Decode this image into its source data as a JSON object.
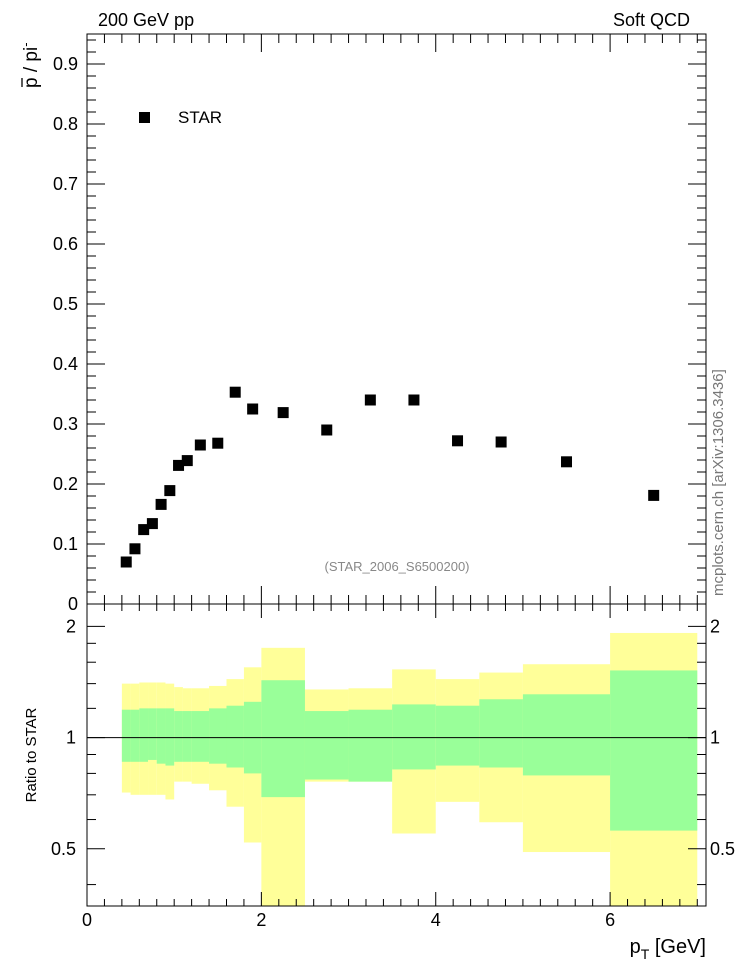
{
  "header": {
    "left": "200 GeV pp",
    "right": "Soft QCD"
  },
  "side_label": "mcplots.cern.ch [arXiv:1306.3436]",
  "reference": "(STAR_2006_S6500200)",
  "colors": {
    "marker": "#000000",
    "band_inner": "#99ff99",
    "band_outer": "#ffff99",
    "frame": "#000000",
    "reference_text": "#888888",
    "side_text": "#777777"
  },
  "chart_data": [
    {
      "type": "scatter",
      "panel": "main",
      "ylabel_parts": {
        "p": "p",
        "rest": " / pi",
        "sup": "-"
      },
      "ylabel": "p̄ / pi-",
      "xlim": [
        0,
        7.1
      ],
      "ylim": [
        0,
        0.95
      ],
      "yticks": [
        0.1,
        0.2,
        0.3,
        0.4,
        0.5,
        0.6,
        0.7,
        0.8,
        0.9
      ],
      "ytick_labels": [
        "0.1",
        "0.2",
        "0.3",
        "0.4",
        "0.5",
        "0.6",
        "0.7",
        "0.8",
        "0.9"
      ],
      "cut_label": "0",
      "legend": {
        "label": "STAR",
        "placement": "top-left"
      },
      "series": [
        {
          "name": "STAR",
          "x": [
            0.45,
            0.55,
            0.65,
            0.75,
            0.85,
            0.95,
            1.05,
            1.15,
            1.3,
            1.5,
            1.7,
            1.9,
            2.25,
            2.75,
            3.25,
            3.75,
            4.25,
            4.75,
            5.5,
            6.5
          ],
          "y": [
            0.07,
            0.092,
            0.124,
            0.134,
            0.166,
            0.189,
            0.231,
            0.239,
            0.265,
            0.268,
            0.353,
            0.325,
            0.319,
            0.29,
            0.34,
            0.34,
            0.272,
            0.27,
            0.237,
            0.181
          ]
        }
      ]
    },
    {
      "type": "area",
      "panel": "ratio",
      "ylabel": "Ratio to STAR",
      "xlabel_main": "p",
      "xlabel_sub": "T",
      "xlabel_unit": " [GeV]",
      "xlim": [
        0,
        7.1
      ],
      "ylim": [
        0.35,
        2.3
      ],
      "xticks": [
        0,
        2,
        4,
        6
      ],
      "xtick_labels": [
        "0",
        "2",
        "4",
        "6"
      ],
      "yticks": [
        0.5,
        1,
        2
      ],
      "ytick_labels": [
        "0.5",
        "1",
        "2"
      ],
      "reference_line": 1,
      "bins": [
        {
          "lo": 0.4,
          "hi": 0.5,
          "inner": [
            0.86,
            1.19
          ],
          "outer": [
            0.71,
            1.4
          ]
        },
        {
          "lo": 0.5,
          "hi": 0.6,
          "inner": [
            0.86,
            1.19
          ],
          "outer": [
            0.7,
            1.4
          ]
        },
        {
          "lo": 0.6,
          "hi": 0.7,
          "inner": [
            0.86,
            1.2
          ],
          "outer": [
            0.7,
            1.41
          ]
        },
        {
          "lo": 0.7,
          "hi": 0.8,
          "inner": [
            0.87,
            1.2
          ],
          "outer": [
            0.7,
            1.41
          ]
        },
        {
          "lo": 0.8,
          "hi": 0.9,
          "inner": [
            0.85,
            1.2
          ],
          "outer": [
            0.7,
            1.41
          ]
        },
        {
          "lo": 0.9,
          "hi": 1.0,
          "inner": [
            0.84,
            1.2
          ],
          "outer": [
            0.68,
            1.4
          ]
        },
        {
          "lo": 1.0,
          "hi": 1.1,
          "inner": [
            0.86,
            1.18
          ],
          "outer": [
            0.76,
            1.37
          ]
        },
        {
          "lo": 1.1,
          "hi": 1.2,
          "inner": [
            0.86,
            1.18
          ],
          "outer": [
            0.76,
            1.36
          ]
        },
        {
          "lo": 1.2,
          "hi": 1.4,
          "inner": [
            0.86,
            1.18
          ],
          "outer": [
            0.75,
            1.36
          ]
        },
        {
          "lo": 1.4,
          "hi": 1.6,
          "inner": [
            0.85,
            1.2
          ],
          "outer": [
            0.72,
            1.38
          ]
        },
        {
          "lo": 1.6,
          "hi": 1.8,
          "inner": [
            0.83,
            1.22
          ],
          "outer": [
            0.65,
            1.44
          ]
        },
        {
          "lo": 1.8,
          "hi": 2.0,
          "inner": [
            0.8,
            1.25
          ],
          "outer": [
            0.52,
            1.55
          ]
        },
        {
          "lo": 2.0,
          "hi": 2.5,
          "inner": [
            0.69,
            1.43
          ],
          "outer": [
            0.3,
            1.75
          ]
        },
        {
          "lo": 2.5,
          "hi": 3.0,
          "inner": [
            0.77,
            1.18
          ],
          "outer": [
            0.76,
            1.35
          ]
        },
        {
          "lo": 3.0,
          "hi": 3.5,
          "inner": [
            0.76,
            1.19
          ],
          "outer": [
            0.76,
            1.36
          ]
        },
        {
          "lo": 3.5,
          "hi": 4.0,
          "inner": [
            0.82,
            1.23
          ],
          "outer": [
            0.55,
            1.53
          ]
        },
        {
          "lo": 4.0,
          "hi": 4.5,
          "inner": [
            0.84,
            1.22
          ],
          "outer": [
            0.67,
            1.44
          ]
        },
        {
          "lo": 4.5,
          "hi": 5.0,
          "inner": [
            0.83,
            1.27
          ],
          "outer": [
            0.59,
            1.5
          ]
        },
        {
          "lo": 5.0,
          "hi": 6.0,
          "inner": [
            0.79,
            1.31
          ],
          "outer": [
            0.49,
            1.58
          ]
        },
        {
          "lo": 6.0,
          "hi": 7.0,
          "inner": [
            0.56,
            1.52
          ],
          "outer": [
            0.3,
            1.92
          ]
        }
      ]
    }
  ]
}
